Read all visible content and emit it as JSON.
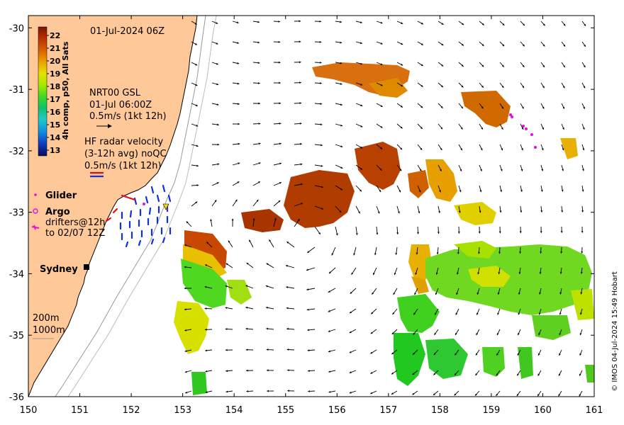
{
  "map": {
    "timestamp": "01-Jul-2024 06Z",
    "lon_ticks": [
      "150",
      "151",
      "152",
      "153",
      "154",
      "155",
      "156",
      "157",
      "158",
      "159",
      "160",
      "161"
    ],
    "lat_ticks": [
      "-30",
      "-31",
      "-32",
      "-33",
      "-34",
      "-35",
      "-36"
    ],
    "extent": {
      "lon": [
        150,
        161
      ],
      "lat": [
        -36,
        -29.8
      ]
    },
    "land_color": "#ffc898",
    "colorbar": {
      "title": "4h comp, p50, All Sats",
      "ticks": [
        "22",
        "21",
        "20",
        "19",
        "18",
        "17",
        "16",
        "15",
        "14",
        "13"
      ],
      "colors": [
        "#8b1a00",
        "#b83a00",
        "#d46a00",
        "#e8a800",
        "#e8d800",
        "#b8e800",
        "#60e000",
        "#10c020",
        "#20c8a0",
        "#10a8e0",
        "#1060d8",
        "#1030a0",
        "#101060"
      ]
    },
    "gsl": {
      "line1": "NRT00 GSL",
      "line2": "01-Jul 06:00Z",
      "line3": "0.5m/s (1kt 12h)"
    },
    "hf_radar": {
      "line1": "HF radar velocity",
      "line2": "(3-12h avg) noQC",
      "line3": "0.5m/s (1kt 12h)"
    },
    "legend": {
      "glider": "Glider",
      "argo": "Argo",
      "drifters_line1": "drifters@12h",
      "drifters_line2": "to 02/07 12Z"
    },
    "city": "Sydney",
    "depth": {
      "d200": "200m",
      "d1000": "1000m"
    },
    "credit": "© IMOS 04-Jul-2024 15:49 Hobart"
  }
}
